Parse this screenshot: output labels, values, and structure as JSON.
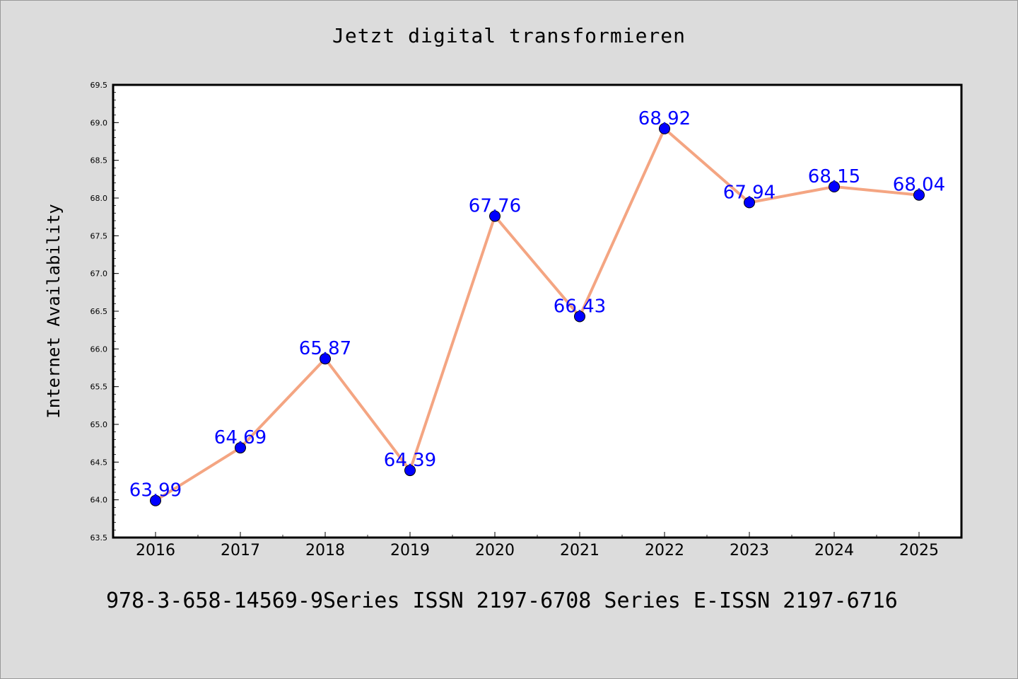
{
  "chart_data": {
    "type": "line",
    "title": "Jetzt digital transformieren",
    "ylabel": "Internet Availability",
    "xlabel": "",
    "categories": [
      "2016",
      "2017",
      "2018",
      "2019",
      "2020",
      "2021",
      "2022",
      "2023",
      "2024",
      "2025"
    ],
    "series": [
      {
        "values": [
          63.99,
          64.69,
          65.87,
          64.39,
          67.76,
          66.43,
          68.92,
          67.94,
          68.15,
          68.04
        ],
        "labels": [
          "63.99",
          "64.69",
          "65.87",
          "64.39",
          "67.76",
          "66.43",
          "68.92",
          "67.94",
          "68.15",
          "68.04"
        ],
        "line_color": "#f4a582",
        "marker_color": "#0000ff"
      }
    ],
    "ylim": [
      63.5,
      69.5
    ],
    "yticks": [
      "63.5",
      "64.0",
      "64.5",
      "65.0",
      "65.5",
      "66.0",
      "66.5",
      "67.0",
      "67.5",
      "68.0",
      "68.5",
      "69.0",
      "69.5"
    ],
    "grid": false,
    "legend": false,
    "plot_background": "#ffffff",
    "label_color": "#0000ff"
  },
  "footer": "978-3-658-14569-9Series ISSN 2197-6708 Series E-ISSN 2197-6716"
}
